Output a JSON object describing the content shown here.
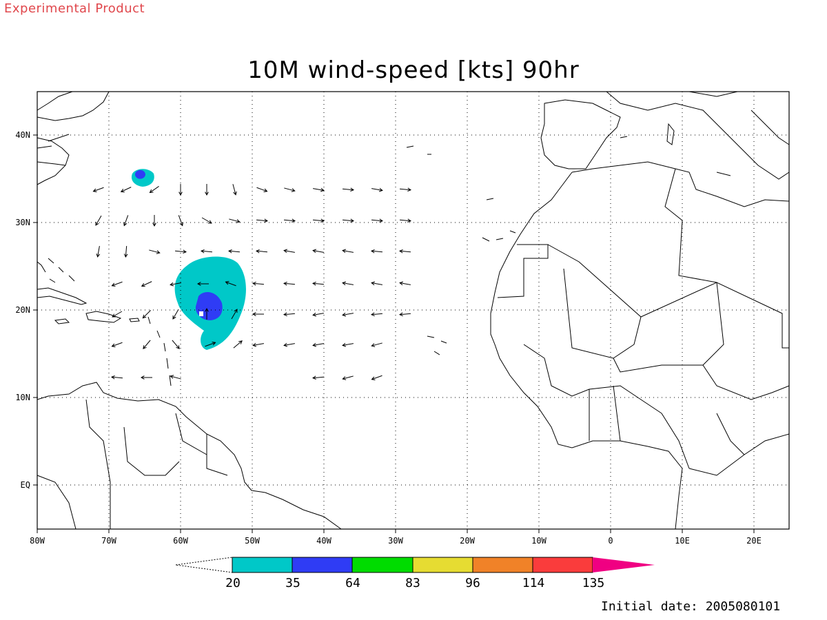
{
  "header": {
    "tag": "Experimental Product"
  },
  "title": "10M wind-speed [kts] 90hr",
  "footer": {
    "initial_date": "Initial date: 2005080101"
  },
  "map": {
    "lon_range": [
      -80,
      25
    ],
    "lat_range": [
      -5,
      45
    ],
    "x_ticks": [
      {
        "lon": -80,
        "label": "80W"
      },
      {
        "lon": -70,
        "label": "70W"
      },
      {
        "lon": -60,
        "label": "60W"
      },
      {
        "lon": -50,
        "label": "50W"
      },
      {
        "lon": -40,
        "label": "40W"
      },
      {
        "lon": -30,
        "label": "30W"
      },
      {
        "lon": -20,
        "label": "20W"
      },
      {
        "lon": -10,
        "label": "10W"
      },
      {
        "lon": 0,
        "label": "0"
      },
      {
        "lon": 10,
        "label": "10E"
      },
      {
        "lon": 20,
        "label": "20E"
      }
    ],
    "y_ticks": [
      {
        "lat": 40,
        "label": "40N"
      },
      {
        "lat": 30,
        "label": "30N"
      },
      {
        "lat": 20,
        "label": "20N"
      },
      {
        "lat": 10,
        "label": "10N"
      },
      {
        "lat": 0,
        "label": "EQ"
      }
    ],
    "grid": true
  },
  "colorbar": {
    "bins": [
      {
        "color": "#00c8c8"
      },
      {
        "color": "#2f3cf5"
      },
      {
        "color": "#00dc00"
      },
      {
        "color": "#e6dc32"
      },
      {
        "color": "#f08228"
      },
      {
        "color": "#fa3c3c"
      },
      {
        "color": "#f00082"
      }
    ],
    "labels": [
      "20",
      "35",
      "64",
      "83",
      "96",
      "114",
      "135"
    ]
  },
  "colors": {
    "tag": "#e0474c",
    "coast": "#000000",
    "grid": "#000000"
  }
}
